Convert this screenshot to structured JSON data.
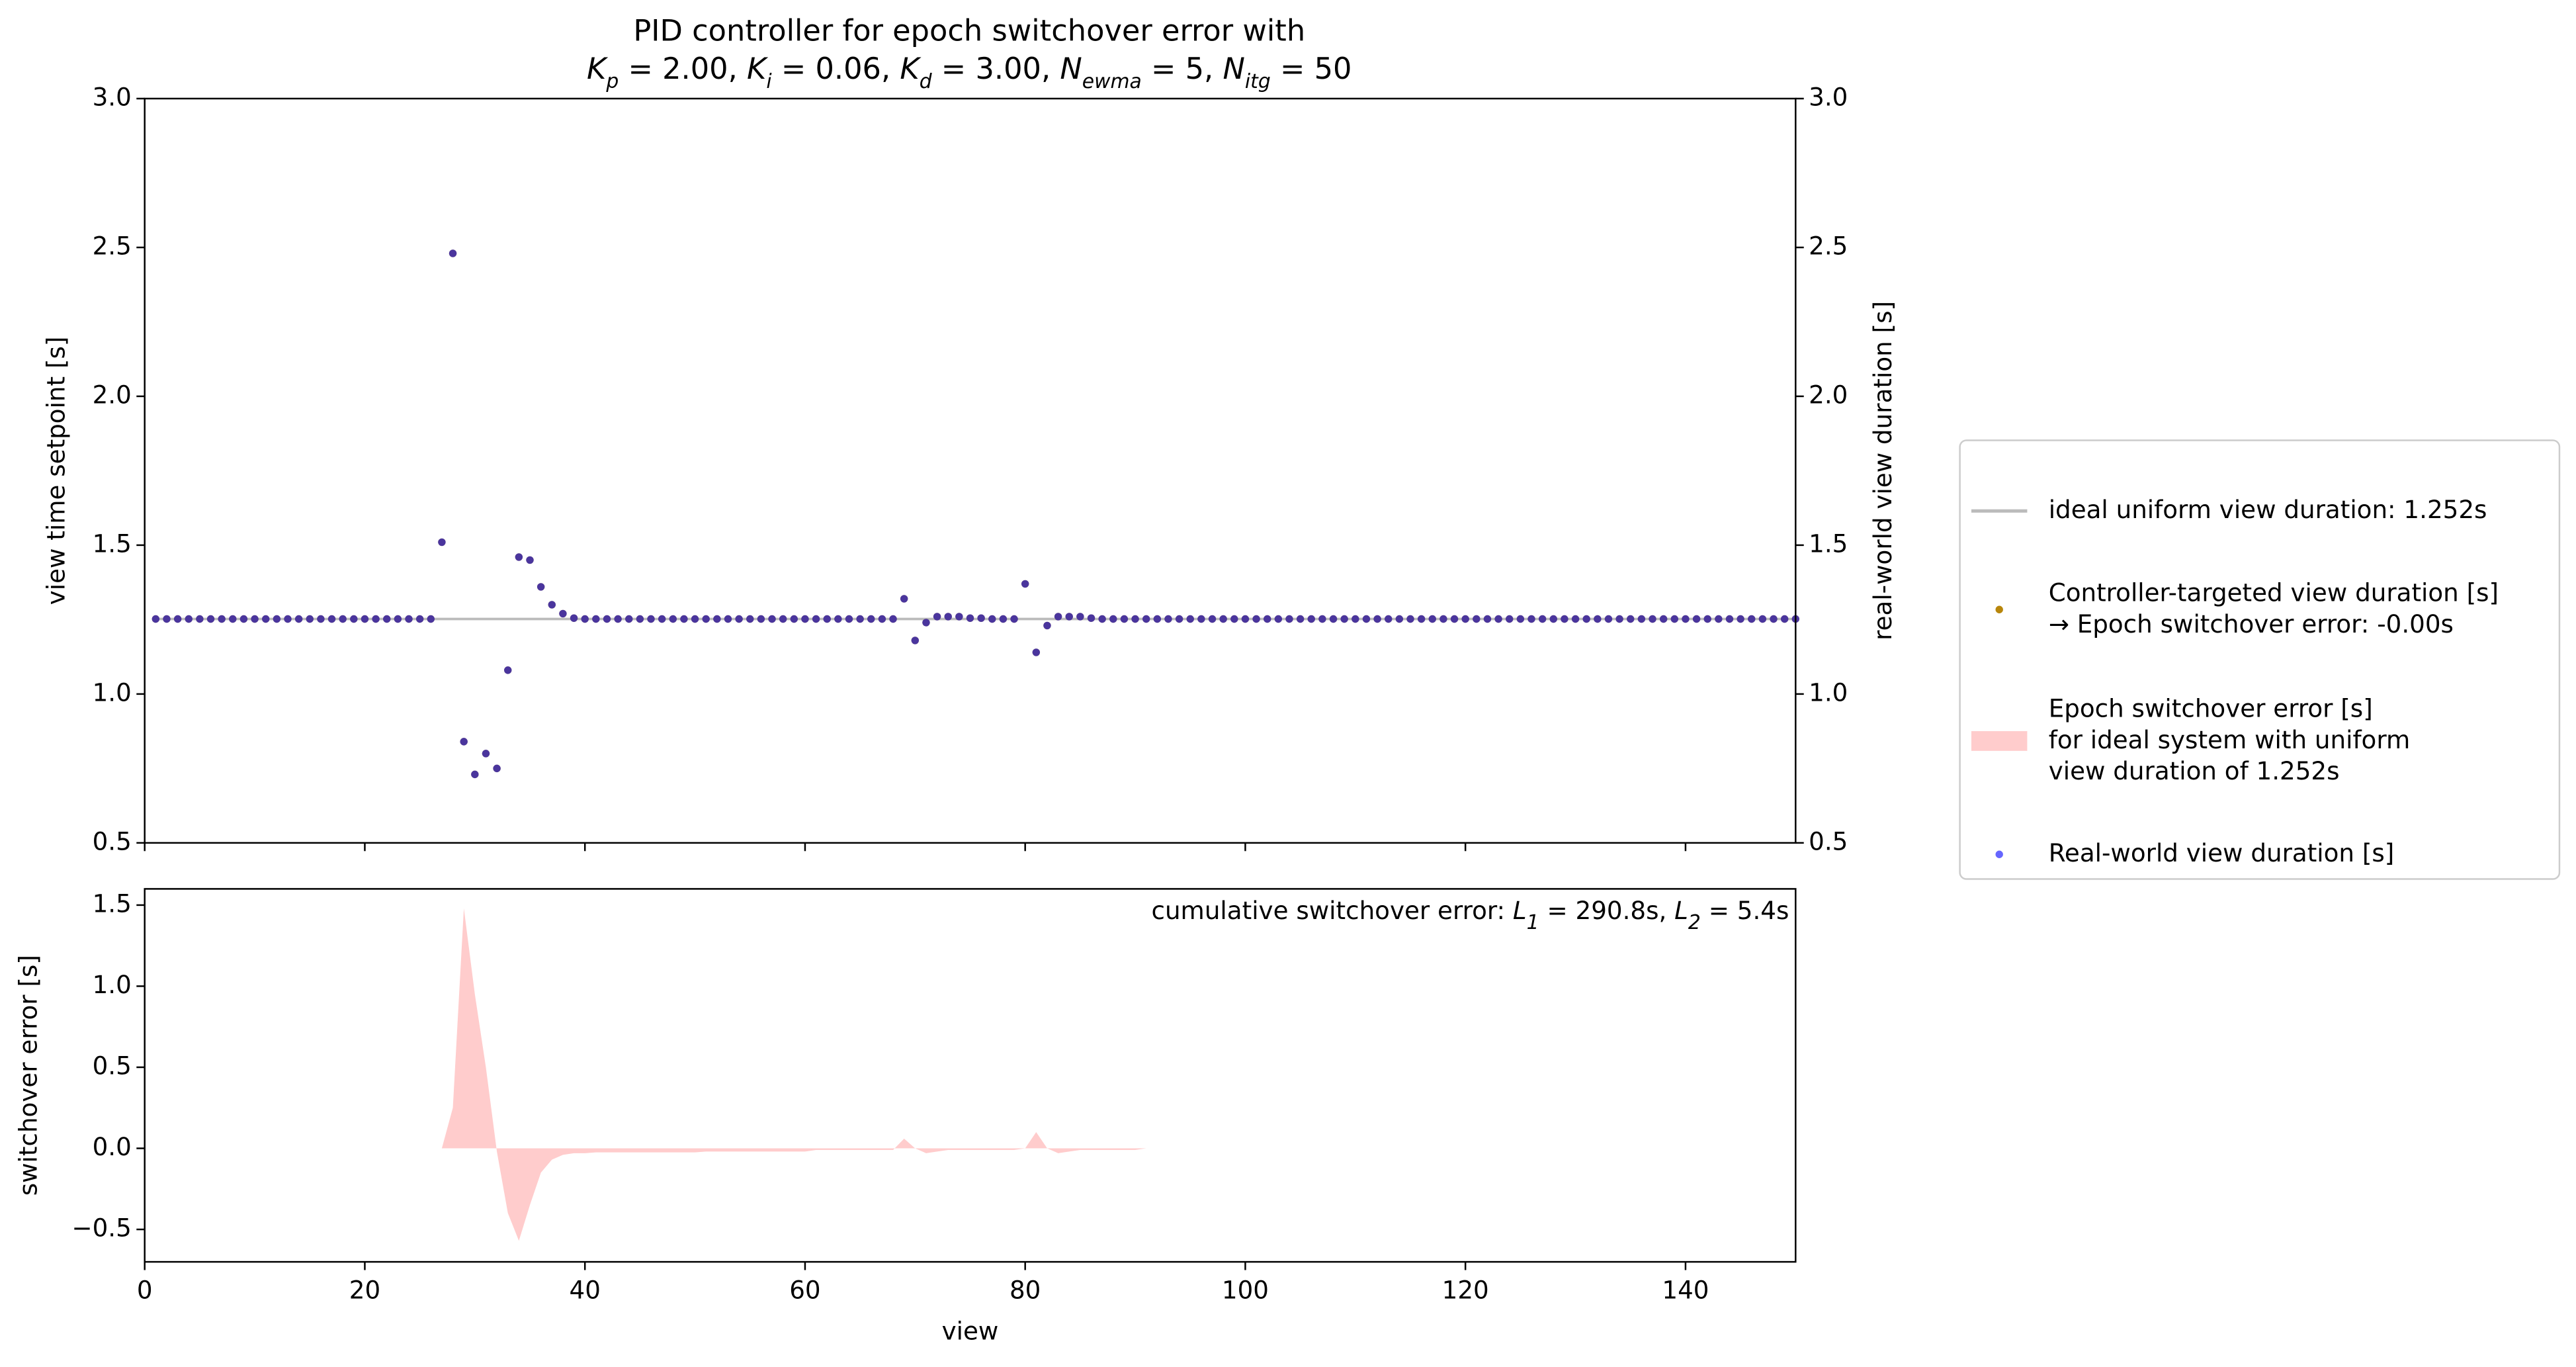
{
  "chart_data": [
    {
      "type": "scatter",
      "title": "PID controller for epoch switchover error with",
      "subtitle_parts": [
        {
          "base": "K",
          "sub": "p",
          "rest": " = 2.00, "
        },
        {
          "base": "K",
          "sub": "i",
          "rest": " = 0.06, "
        },
        {
          "base": "K",
          "sub": "d",
          "rest": " = 3.00, "
        },
        {
          "base": "N",
          "sub": "ewma",
          "rest": " = 5, "
        },
        {
          "base": "N",
          "sub": "itg",
          "rest": " = 50"
        }
      ],
      "ylabel": "view time setpoint [s]",
      "ycolor": "#b8860b",
      "y2label": "real-world view duration [s]",
      "y2color": "#0000ff",
      "xlim": [
        0,
        150
      ],
      "xticks": [
        0,
        20,
        40,
        60,
        80,
        100,
        120,
        140
      ],
      "ylim": [
        0.5,
        3.0
      ],
      "yticks": [
        {
          "value": 0.5,
          "label": "0.5"
        },
        {
          "value": 1,
          "label": "1.0"
        },
        {
          "value": 1.5,
          "label": "1.5"
        },
        {
          "value": 2,
          "label": "2.0"
        },
        {
          "value": 2.5,
          "label": "2.5"
        },
        {
          "value": 3,
          "label": "3.0"
        }
      ],
      "y2lim": [
        0.5,
        3.0
      ],
      "y2ticks": [
        {
          "value": 0.5,
          "label": "0.5"
        },
        {
          "value": 1,
          "label": "1.0"
        },
        {
          "value": 1.5,
          "label": "1.5"
        },
        {
          "value": 2,
          "label": "2.0"
        },
        {
          "value": 2.5,
          "label": "2.5"
        },
        {
          "value": 3,
          "label": "3.0"
        }
      ],
      "reference_line": {
        "name": "ideal uniform view duration: 1.252s",
        "color": "#bbbbbb",
        "value": 1.252
      },
      "x": [
        1,
        2,
        3,
        4,
        5,
        6,
        7,
        8,
        9,
        10,
        11,
        12,
        13,
        14,
        15,
        16,
        17,
        18,
        19,
        20,
        21,
        22,
        23,
        24,
        25,
        26,
        27,
        28,
        29,
        30,
        31,
        32,
        33,
        34,
        35,
        36,
        37,
        38,
        39,
        40,
        41,
        42,
        43,
        44,
        45,
        46,
        47,
        48,
        49,
        50,
        51,
        52,
        53,
        54,
        55,
        56,
        57,
        58,
        59,
        60,
        61,
        62,
        63,
        64,
        65,
        66,
        67,
        68,
        69,
        70,
        71,
        72,
        73,
        74,
        75,
        76,
        77,
        78,
        79,
        80,
        81,
        82,
        83,
        84,
        85,
        86,
        87,
        88,
        89,
        90,
        91,
        92,
        93,
        94,
        95,
        96,
        97,
        98,
        99,
        100,
        101,
        102,
        103,
        104,
        105,
        106,
        107,
        108,
        109,
        110,
        111,
        112,
        113,
        114,
        115,
        116,
        117,
        118,
        119,
        120,
        121,
        122,
        123,
        124,
        125,
        126,
        127,
        128,
        129,
        130,
        131,
        132,
        133,
        134,
        135,
        136,
        137,
        138,
        139,
        140,
        141,
        142,
        143,
        144,
        145,
        146,
        147,
        148,
        149,
        150
      ],
      "series": [
        {
          "name": "Controller-targeted view duration [s]\n→ Epoch switchover error: -0.00s",
          "color": "#b8860b",
          "alpha": 1,
          "values": [
            1.252,
            1.252,
            1.252,
            1.252,
            1.252,
            1.252,
            1.252,
            1.252,
            1.252,
            1.252,
            1.252,
            1.252,
            1.252,
            1.252,
            1.252,
            1.252,
            1.252,
            1.252,
            1.252,
            1.252,
            1.252,
            1.252,
            1.252,
            1.252,
            1.252,
            1.252,
            1.51,
            2.48,
            0.84,
            0.73,
            0.8,
            0.75,
            1.08,
            1.46,
            1.45,
            1.36,
            1.3,
            1.27,
            1.255,
            1.252,
            1.252,
            1.252,
            1.252,
            1.252,
            1.252,
            1.252,
            1.252,
            1.252,
            1.252,
            1.252,
            1.252,
            1.252,
            1.252,
            1.252,
            1.252,
            1.252,
            1.252,
            1.252,
            1.252,
            1.252,
            1.252,
            1.252,
            1.252,
            1.252,
            1.252,
            1.252,
            1.252,
            1.252,
            1.32,
            1.18,
            1.24,
            1.26,
            1.26,
            1.26,
            1.255,
            1.255,
            1.252,
            1.252,
            1.252,
            1.37,
            1.14,
            1.23,
            1.26,
            1.26,
            1.26,
            1.255,
            1.252,
            1.252,
            1.252,
            1.252,
            1.252,
            1.252,
            1.252,
            1.252,
            1.252,
            1.252,
            1.252,
            1.252,
            1.252,
            1.252,
            1.252,
            1.252,
            1.252,
            1.252,
            1.252,
            1.252,
            1.252,
            1.252,
            1.252,
            1.252,
            1.252,
            1.252,
            1.252,
            1.252,
            1.252,
            1.252,
            1.252,
            1.252,
            1.252,
            1.252,
            1.252,
            1.252,
            1.252,
            1.252,
            1.252,
            1.252,
            1.252,
            1.252,
            1.252,
            1.252,
            1.252,
            1.252,
            1.252,
            1.252,
            1.252,
            1.252,
            1.252,
            1.252,
            1.252,
            1.252,
            1.252,
            1.252,
            1.252,
            1.252,
            1.252,
            1.252,
            1.252,
            1.252,
            1.252,
            1.252
          ]
        },
        {
          "name": "Real-world view duration [s]",
          "color": "#0000ff",
          "alpha": 0.6,
          "axis": "y2",
          "values": [
            1.252,
            1.252,
            1.252,
            1.252,
            1.252,
            1.252,
            1.252,
            1.252,
            1.252,
            1.252,
            1.252,
            1.252,
            1.252,
            1.252,
            1.252,
            1.252,
            1.252,
            1.252,
            1.252,
            1.252,
            1.252,
            1.252,
            1.252,
            1.252,
            1.252,
            1.252,
            1.51,
            2.48,
            0.84,
            0.73,
            0.8,
            0.75,
            1.08,
            1.46,
            1.45,
            1.36,
            1.3,
            1.27,
            1.255,
            1.252,
            1.252,
            1.252,
            1.252,
            1.252,
            1.252,
            1.252,
            1.252,
            1.252,
            1.252,
            1.252,
            1.252,
            1.252,
            1.252,
            1.252,
            1.252,
            1.252,
            1.252,
            1.252,
            1.252,
            1.252,
            1.252,
            1.252,
            1.252,
            1.252,
            1.252,
            1.252,
            1.252,
            1.252,
            1.32,
            1.18,
            1.24,
            1.26,
            1.26,
            1.26,
            1.255,
            1.255,
            1.252,
            1.252,
            1.252,
            1.37,
            1.14,
            1.23,
            1.26,
            1.26,
            1.26,
            1.255,
            1.252,
            1.252,
            1.252,
            1.252,
            1.252,
            1.252,
            1.252,
            1.252,
            1.252,
            1.252,
            1.252,
            1.252,
            1.252,
            1.252,
            1.252,
            1.252,
            1.252,
            1.252,
            1.252,
            1.252,
            1.252,
            1.252,
            1.252,
            1.252,
            1.252,
            1.252,
            1.252,
            1.252,
            1.252,
            1.252,
            1.252,
            1.252,
            1.252,
            1.252,
            1.252,
            1.252,
            1.252,
            1.252,
            1.252,
            1.252,
            1.252,
            1.252,
            1.252,
            1.252,
            1.252,
            1.252,
            1.252,
            1.252,
            1.252,
            1.252,
            1.252,
            1.252,
            1.252,
            1.252,
            1.252,
            1.252,
            1.252,
            1.252,
            1.252,
            1.252,
            1.252,
            1.252,
            1.252,
            1.252
          ]
        }
      ]
    },
    {
      "type": "area",
      "xlabel": "view",
      "ylabel": "switchover error [s]",
      "ycolor": "#8b0000",
      "annotation": {
        "text": "cumulative switchover error: ",
        "parts": [
          {
            "base": "L",
            "sub": "1",
            "rest": " = 290.8s, "
          },
          {
            "base": "L",
            "sub": "2",
            "rest": " = 5.4s"
          }
        ]
      },
      "xlim": [
        0,
        150
      ],
      "xticks": [
        0,
        20,
        40,
        60,
        80,
        100,
        120,
        140
      ],
      "ylim": [
        -0.7,
        1.6
      ],
      "yticks": [
        {
          "value": -0.5,
          "label": "−0.5"
        },
        {
          "value": 0,
          "label": "0.0"
        },
        {
          "value": 0.5,
          "label": "0.5"
        },
        {
          "value": 1,
          "label": "1.0"
        },
        {
          "value": 1.5,
          "label": "1.5"
        }
      ],
      "x": [
        27,
        28,
        29,
        30,
        31,
        32,
        33,
        34,
        35,
        36,
        37,
        38,
        39,
        40,
        41,
        42,
        43,
        44,
        45,
        46,
        47,
        48,
        49,
        50,
        51,
        52,
        53,
        54,
        55,
        56,
        57,
        58,
        59,
        60,
        61,
        62,
        63,
        64,
        65,
        66,
        67,
        68,
        69,
        70,
        71,
        72,
        73,
        74,
        75,
        76,
        77,
        78,
        79,
        80,
        81,
        82,
        83,
        84,
        85,
        86,
        87,
        88,
        89,
        90,
        91,
        92,
        93,
        94,
        95,
        96,
        97,
        98,
        99,
        100,
        101,
        102,
        103,
        104,
        105,
        106,
        107,
        108,
        109,
        110,
        111,
        112,
        113,
        114,
        115,
        116,
        117,
        118,
        119,
        120,
        121,
        122,
        123,
        124,
        125,
        126,
        127,
        128,
        129,
        130,
        131,
        132,
        133,
        134,
        135,
        136,
        137,
        138,
        139,
        140,
        141,
        142,
        143,
        144,
        145,
        146,
        147,
        148,
        149,
        150
      ],
      "series": [
        {
          "name": "Epoch switchover error [s]\nfor ideal system with uniform\nview duration of 1.252s",
          "color": "#ffcccc",
          "values": [
            0,
            0.25,
            1.48,
            0.95,
            0.5,
            -0.02,
            -0.4,
            -0.57,
            -0.35,
            -0.15,
            -0.07,
            -0.04,
            -0.03,
            -0.03,
            -0.025,
            -0.025,
            -0.025,
            -0.025,
            -0.025,
            -0.025,
            -0.025,
            -0.025,
            -0.025,
            -0.025,
            -0.02,
            -0.02,
            -0.02,
            -0.02,
            -0.02,
            -0.02,
            -0.02,
            -0.02,
            -0.02,
            -0.02,
            -0.01,
            -0.01,
            -0.01,
            -0.01,
            -0.01,
            -0.01,
            -0.01,
            -0.01,
            0.06,
            0,
            -0.03,
            -0.02,
            -0.01,
            -0.01,
            -0.01,
            -0.01,
            -0.01,
            -0.01,
            -0.01,
            0,
            0.1,
            0,
            -0.03,
            -0.02,
            -0.01,
            -0.01,
            -0.01,
            -0.01,
            -0.01,
            -0.01,
            0,
            0,
            0,
            0,
            0,
            0,
            0,
            0,
            0,
            0,
            0,
            0,
            0,
            0,
            0,
            0,
            0,
            0,
            0,
            0,
            0,
            0,
            0,
            0,
            0,
            0,
            0,
            0,
            0,
            0,
            0,
            0,
            0,
            0,
            0,
            0,
            0,
            0,
            0,
            0,
            0,
            0,
            0,
            0,
            0,
            0,
            0,
            0,
            0,
            0,
            0,
            0,
            0,
            0,
            0,
            0,
            0,
            0,
            0,
            0
          ]
        }
      ]
    }
  ]
}
